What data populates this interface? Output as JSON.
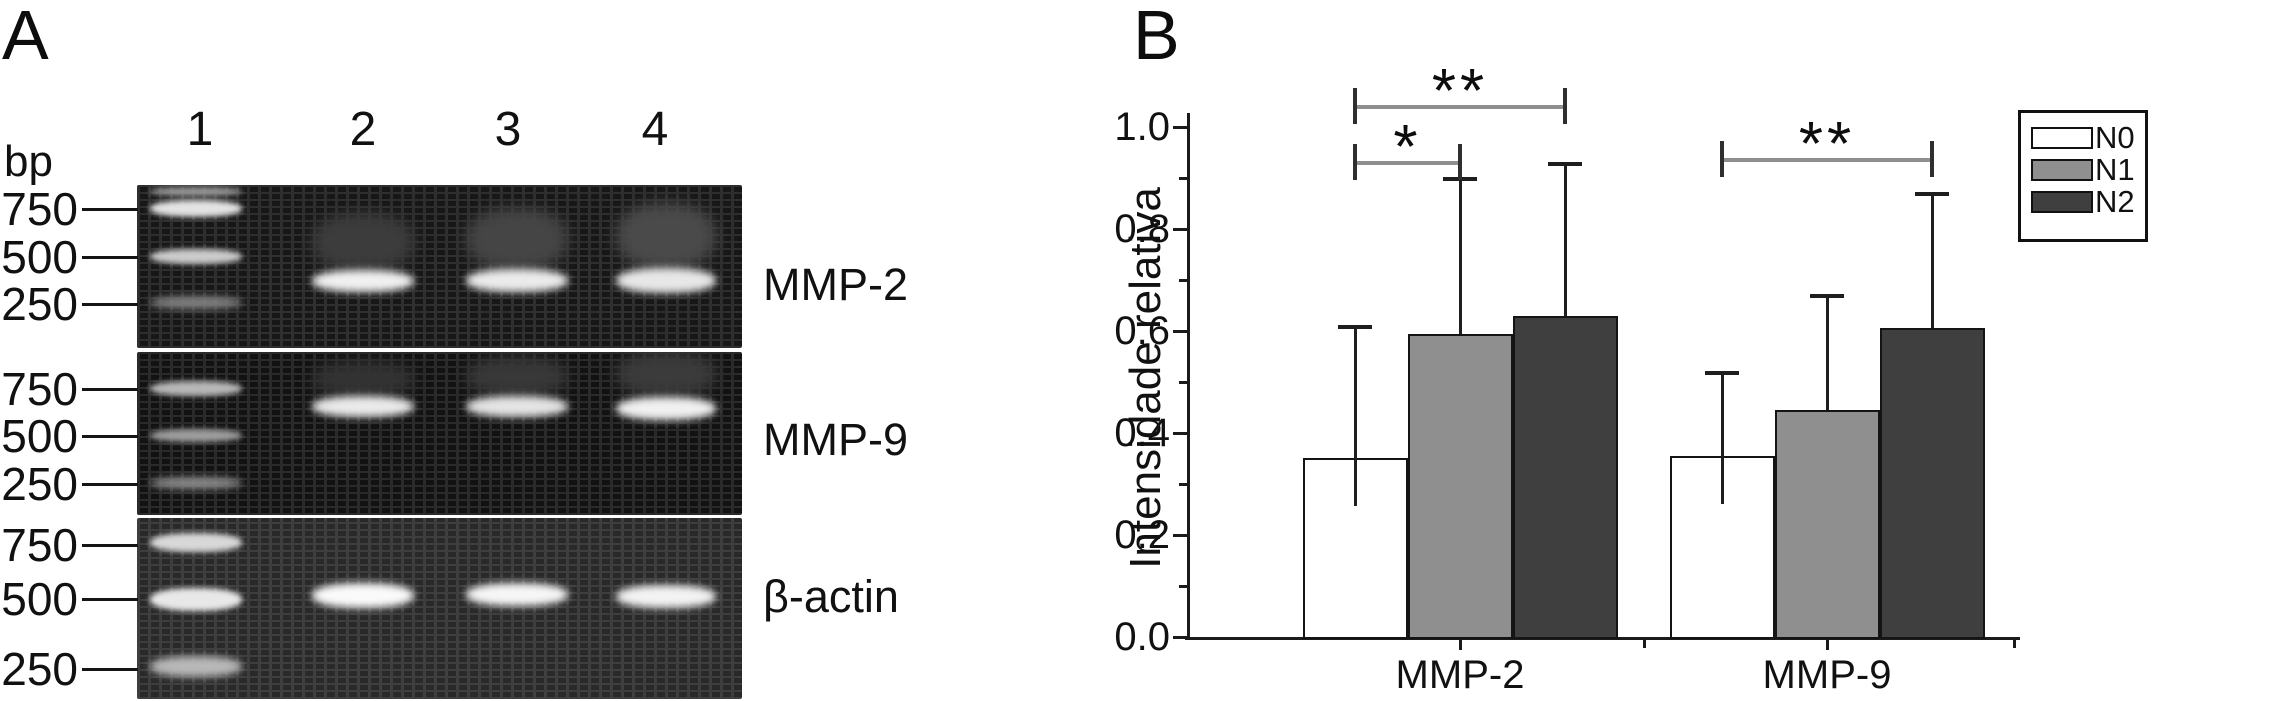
{
  "panelA": {
    "label": "A",
    "bp_unit": "bp",
    "lane_numbers": [
      "1",
      "2",
      "3",
      "4"
    ],
    "gels": [
      {
        "name": "MMP-2",
        "markers": [
          "750",
          "500",
          "250"
        ]
      },
      {
        "name": "MMP-9",
        "markers": [
          "750",
          "500",
          "250"
        ]
      },
      {
        "name": "β-actin",
        "markers": [
          "750",
          "500",
          "250"
        ]
      }
    ]
  },
  "panelB": {
    "label": "B"
  },
  "chart_data": {
    "type": "bar",
    "title": "",
    "xlabel": "",
    "ylabel": "Intensidade relativa",
    "categories": [
      "MMP-2",
      "MMP-9"
    ],
    "series": [
      {
        "name": "N0",
        "color": "#ffffff",
        "values": [
          0.35,
          0.355
        ],
        "errors_plus": [
          0.26,
          0.165
        ]
      },
      {
        "name": "N1",
        "color": "#8f8f8f",
        "values": [
          0.595,
          0.445
        ],
        "errors_plus": [
          0.305,
          0.225
        ]
      },
      {
        "name": "N2",
        "color": "#3f3f3f",
        "values": [
          0.63,
          0.605
        ],
        "errors_plus": [
          0.3,
          0.265
        ]
      }
    ],
    "ylim": [
      0.0,
      1.05
    ],
    "yticks": [
      0.0,
      0.2,
      0.4,
      0.6,
      0.8,
      1.0
    ],
    "ytick_labels": [
      "0.0",
      "0.2",
      "0.4",
      "0.6",
      "0.8",
      "1.0"
    ],
    "minor_yticks": [
      0.1,
      0.3,
      0.5,
      0.7,
      0.9
    ],
    "grid": false,
    "legend": {
      "position": "top-right",
      "entries": [
        "N0",
        "N1",
        "N2"
      ]
    },
    "significance": [
      {
        "label": "*",
        "category": "MMP-2",
        "from": "N0",
        "to": "N1",
        "height": 0.93
      },
      {
        "label": "**",
        "category": "MMP-2",
        "from": "N0",
        "to": "N2",
        "height": 1.04
      },
      {
        "label": "**",
        "category": "MMP-9",
        "from": "N0",
        "to": "N2",
        "height": 0.935
      }
    ]
  }
}
